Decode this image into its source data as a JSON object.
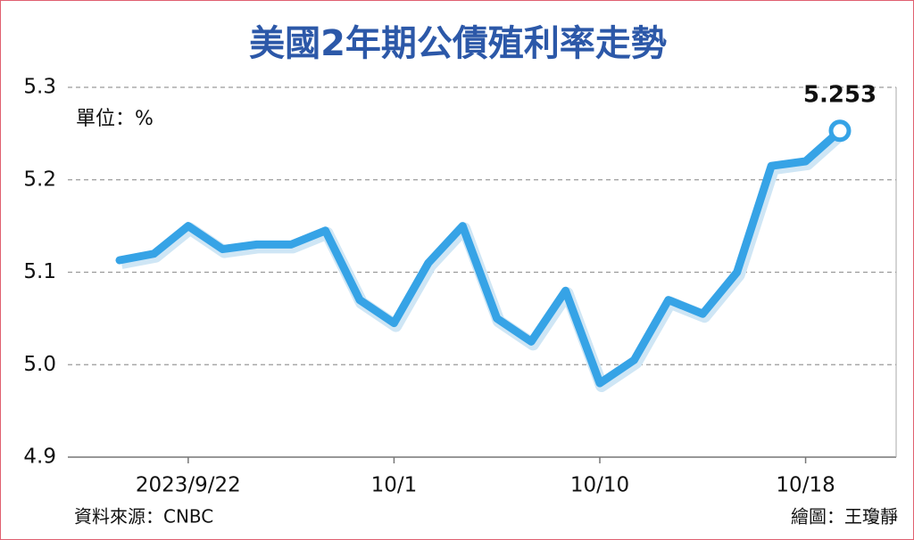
{
  "chart_data": {
    "type": "line",
    "title": "美國2年期公債殖利率走勢",
    "unit_label": "單位：%",
    "source": "資料來源：CNBC",
    "credit": "繪圖：王瓊靜",
    "categories": [
      null,
      null,
      "2023/9/22",
      null,
      null,
      null,
      null,
      null,
      "10/1",
      null,
      null,
      null,
      null,
      null,
      "10/10",
      null,
      null,
      null,
      null,
      null,
      "10/18",
      null
    ],
    "series": [
      {
        "name": "美國2年期公債殖利率",
        "color": "#36a3e6",
        "values": [
          5.113,
          5.12,
          5.15,
          5.125,
          5.13,
          5.13,
          5.145,
          5.07,
          5.045,
          5.11,
          5.15,
          5.05,
          5.025,
          5.08,
          4.98,
          5.005,
          5.07,
          5.055,
          5.1,
          5.215,
          5.22,
          5.253
        ]
      }
    ],
    "ylim": [
      4.9,
      5.3
    ],
    "yticks": [
      4.9,
      {
        "value": 5,
        "label": "5.0"
      },
      5.1,
      5.2,
      5.3
    ],
    "grid": true
  }
}
